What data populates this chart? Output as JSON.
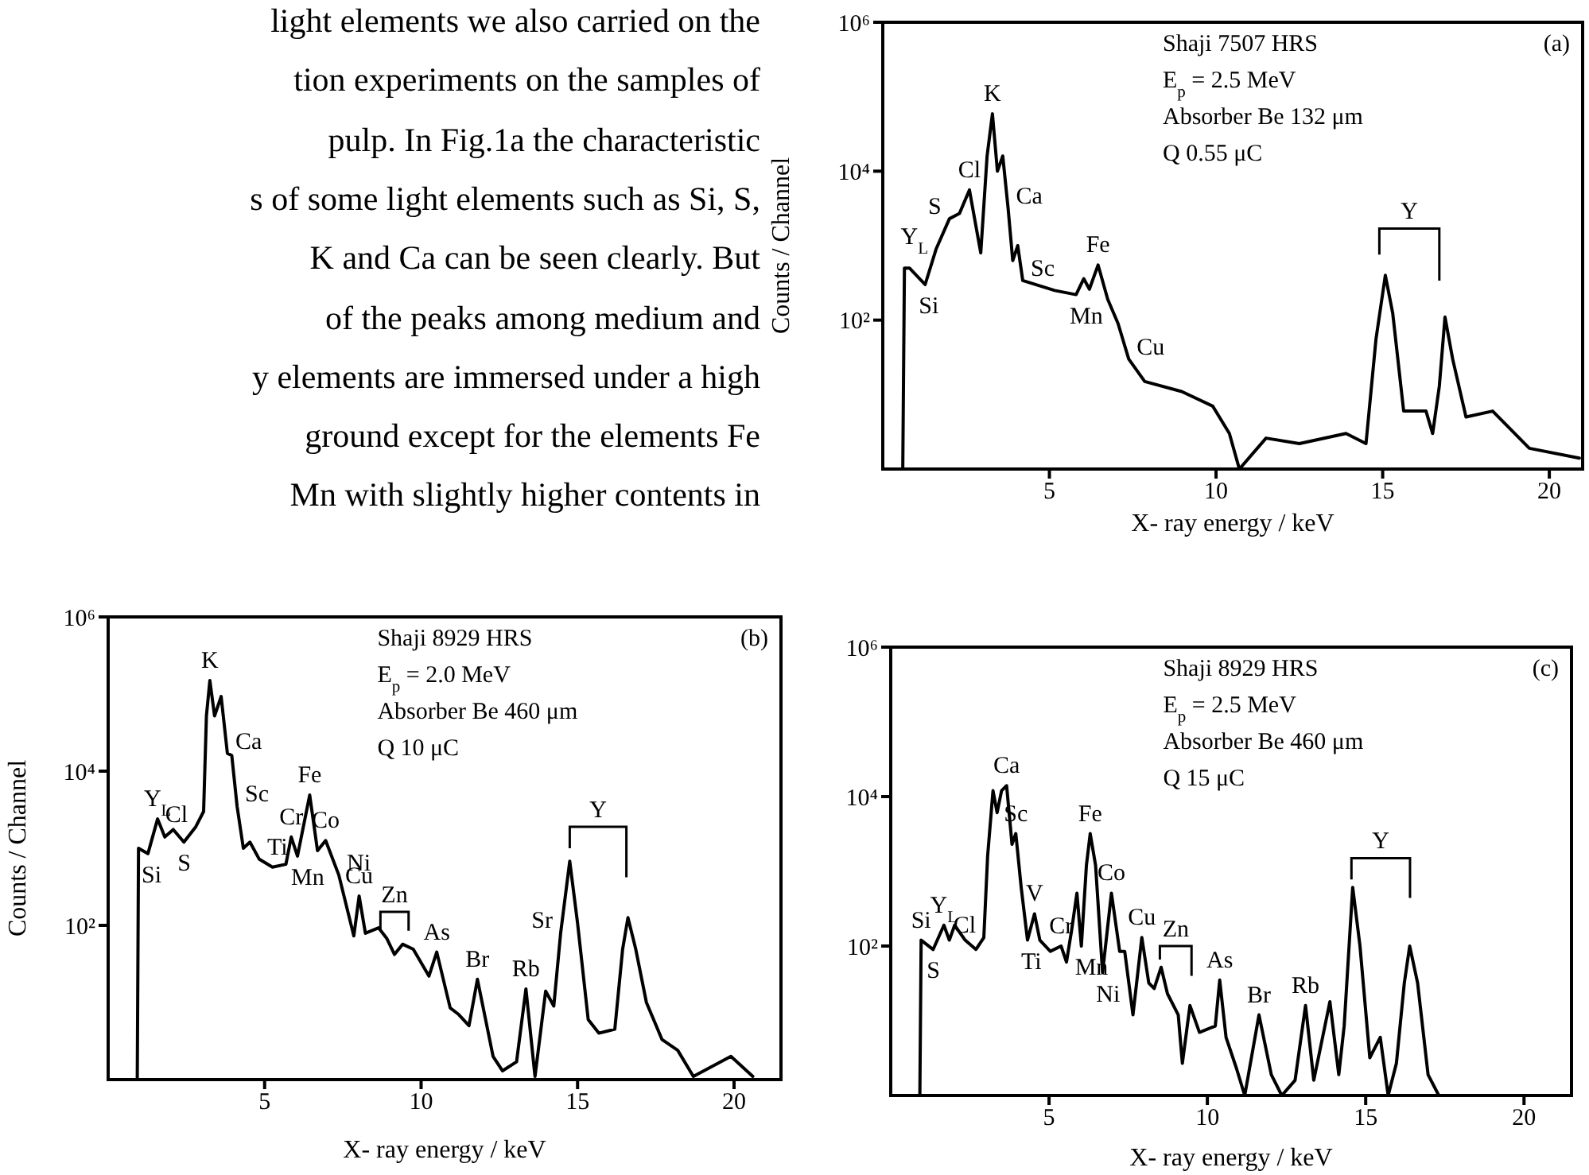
{
  "chart_data": [
    {
      "type": "other",
      "annotations": [
        "light elements we also carried on the",
        "tion experiments on the samples of",
        "pulp. In Fig.1a the characteristic",
        "s of some light elements such as Si, S,",
        "K and Ca can be seen clearly. But",
        "of the peaks among medium and",
        "y elements are immersed under a high",
        "ground except for the elements Fe",
        "Mn with slightly higher contents in"
      ]
    },
    {
      "type": "line",
      "color": "#000000",
      "log": "y",
      "xlabel": "X- ray energy / keV",
      "ylabel": "Counts / Channel",
      "xlim": [
        0,
        21
      ],
      "xticks": [
        5,
        10,
        15,
        20
      ],
      "ylim": [
        1,
        1000000
      ],
      "yticks": [
        {
          "value": 100,
          "label": "10²"
        },
        {
          "value": 10000,
          "label": "10⁴"
        },
        {
          "value": 1000000,
          "label": "10⁶"
        }
      ],
      "x": [
        0.2,
        0.6,
        0.65,
        0.8,
        1.27,
        1.6,
        2.0,
        2.3,
        2.6,
        2.94,
        3.13,
        3.29,
        3.44,
        3.6,
        3.76,
        3.9,
        4.05,
        4.2,
        5.16,
        5.8,
        6.03,
        6.2,
        6.46,
        6.75,
        7.06,
        7.38,
        7.86,
        8.97,
        9.9,
        10.4,
        10.7,
        11.5,
        12.5,
        13.9,
        14.5,
        14.8,
        15.08,
        15.3,
        15.63,
        16.3,
        16.5,
        16.7,
        16.87,
        17.1,
        17.5,
        18.3,
        19.4,
        20.9
      ],
      "values": [
        1,
        1,
        500,
        500,
        300,
        900,
        2300,
        2700,
        5600,
        800,
        16000,
        59000,
        10000,
        16000,
        3200,
        630,
        1000,
        340,
        250,
        220,
        360,
        260,
        550,
        190,
        90,
        30,
        15,
        11,
        7,
        3,
        1,
        2.6,
        2.2,
        3,
        2.2,
        56,
        400,
        125,
        6,
        6,
        3,
        13,
        110,
        30,
        5,
        6,
        1.9,
        1.4
      ],
      "annotations": [
        "Shaji 7507 HRS",
        "E$_{p}$ = 2.5 MeV",
        "Absorber Be 132 μm",
        "Q  0.55 μC",
        "(a)",
        "Y",
        {
          "text": "Si",
          "x": 1.27,
          "y": 300
        },
        {
          "text": "Y$_{L}$",
          "x": 1.6,
          "y": 900
        },
        {
          "text": "S",
          "x": 2.0,
          "y": 2300
        },
        {
          "text": "Cl",
          "x": 2.6,
          "y": 5600
        },
        {
          "text": "K",
          "x": 3.29,
          "y": 59000
        },
        {
          "text": "Ca",
          "x": 3.76,
          "y": 3200
        },
        {
          "text": "Sc",
          "x": 4.2,
          "y": 340
        },
        {
          "text": "Mn",
          "x": 5.8,
          "y": 220
        },
        {
          "text": "Fe",
          "x": 6.46,
          "y": 550
        },
        {
          "text": "Cu",
          "x": 7.38,
          "y": 30
        }
      ]
    },
    {
      "type": "line",
      "color": "#000000",
      "log": "y",
      "xlabel": "X- ray energy / keV",
      "ylabel": "Counts / Channel",
      "xlim": [
        0,
        21.5
      ],
      "xticks": [
        5,
        10,
        15,
        20
      ],
      "ylim": [
        1,
        1000000
      ],
      "yticks": [
        {
          "value": 100,
          "label": "10²"
        },
        {
          "value": 10000,
          "label": "10⁴"
        },
        {
          "value": 1000000,
          "label": "10⁶"
        }
      ],
      "x": [
        0.3,
        0.93,
        0.97,
        1.27,
        1.58,
        1.81,
        2.08,
        2.42,
        2.8,
        3.05,
        3.14,
        3.25,
        3.4,
        3.61,
        3.81,
        3.95,
        4.12,
        4.32,
        4.53,
        4.83,
        5.25,
        5.68,
        5.85,
        6.05,
        6.44,
        6.69,
        6.95,
        7.37,
        7.85,
        8.02,
        8.22,
        8.64,
        8.9,
        9.15,
        9.41,
        9.75,
        10.25,
        10.5,
        10.93,
        11.2,
        11.53,
        11.8,
        12.3,
        12.6,
        13.05,
        13.35,
        13.64,
        13.98,
        14.24,
        14.46,
        14.75,
        15.0,
        15.34,
        15.68,
        16.19,
        16.44,
        16.61,
        16.86,
        17.2,
        17.7,
        18.2,
        18.7,
        19.9,
        20.6
      ],
      "values": [
        1,
        1,
        1000,
        850,
        2400,
        1400,
        1750,
        1200,
        1900,
        3000,
        52000,
        150000,
        52000,
        93000,
        17000,
        16000,
        3500,
        1000,
        1200,
        720,
        570,
        620,
        1400,
        790,
        4900,
        930,
        1260,
        450,
        73,
        240,
        79,
        93,
        68,
        42,
        57,
        49,
        22,
        45,
        8.5,
        7,
        5,
        20,
        2,
        1.3,
        1.7,
        15,
        1.1,
        14,
        9,
        80,
        680,
        107,
        6,
        4,
        4.5,
        49,
        126,
        49,
        10,
        3.3,
        2.4,
        1.1,
        2,
        1.1
      ],
      "annotations": [
        "Shaji 8929 HRS",
        "E$_{p}$ = 2.0 MeV",
        "Absorber Be 460 μm",
        "Q  10 μC",
        "(b)",
        "Y",
        "Zn",
        {
          "text": "Si",
          "x": 1.27,
          "y": 850
        },
        {
          "text": "Y$_{L}$",
          "x": 1.58,
          "y": 2400
        },
        {
          "text": "Cl",
          "x": 2.8,
          "y": 1900
        },
        {
          "text": "S",
          "x": 2.42,
          "y": 1200
        },
        {
          "text": "K",
          "x": 3.25,
          "y": 150000
        },
        {
          "text": "Ca",
          "x": 3.81,
          "y": 17000
        },
        {
          "text": "Sc",
          "x": 4.12,
          "y": 3500
        },
        {
          "text": "Ti",
          "x": 4.83,
          "y": 720
        },
        {
          "text": "Cr",
          "x": 5.85,
          "y": 1400
        },
        {
          "text": "Mn",
          "x": 6.05,
          "y": 790
        },
        {
          "text": "Fe",
          "x": 6.44,
          "y": 4900
        },
        {
          "text": "Co",
          "x": 6.95,
          "y": 1260
        },
        {
          "text": "Ni",
          "x": 7.37,
          "y": 450
        },
        {
          "text": "Cu",
          "x": 8.02,
          "y": 240
        },
        {
          "text": "As",
          "x": 10.5,
          "y": 45
        },
        {
          "text": "Br",
          "x": 11.8,
          "y": 20
        },
        {
          "text": "Rb",
          "x": 13.35,
          "y": 15
        },
        {
          "text": "Sr",
          "x": 14.46,
          "y": 80
        }
      ]
    },
    {
      "type": "line",
      "color": "#000000",
      "log": "y",
      "xlabel": "X- ray energy / keV",
      "xlim": [
        0,
        21.5
      ],
      "xticks": [
        5,
        10,
        15,
        20
      ],
      "ylim": [
        1,
        1000000
      ],
      "yticks": [
        {
          "value": 100,
          "label": "10²"
        },
        {
          "value": 10000,
          "label": "10⁴"
        },
        {
          "value": 1000000,
          "label": "10⁶"
        }
      ],
      "x": [
        0.5,
        0.92,
        0.96,
        1.34,
        1.68,
        1.85,
        2.02,
        2.35,
        2.69,
        2.94,
        3.06,
        3.23,
        3.36,
        3.5,
        3.66,
        3.83,
        3.95,
        4.12,
        4.32,
        4.54,
        4.71,
        5.04,
        5.38,
        5.55,
        5.71,
        5.88,
        6.02,
        6.18,
        6.3,
        6.47,
        6.69,
        6.97,
        7.23,
        7.39,
        7.65,
        7.93,
        8.15,
        8.32,
        8.54,
        8.74,
        9.08,
        9.21,
        9.45,
        9.75,
        10.25,
        10.39,
        10.59,
        10.92,
        11.18,
        11.63,
        12.02,
        12.35,
        12.77,
        13.1,
        13.36,
        13.87,
        14.15,
        14.32,
        14.59,
        14.82,
        15.13,
        15.46,
        15.71,
        15.97,
        16.22,
        16.39,
        16.64,
        16.97,
        17.31,
        17.82,
        18.8,
        19.66,
        21.4
      ],
      "values": [
        1,
        1,
        120,
        90,
        190,
        120,
        190,
        120,
        90,
        130,
        1600,
        12000,
        6100,
        12000,
        14000,
        2300,
        3200,
        610,
        120,
        270,
        120,
        85,
        100,
        61,
        160,
        510,
        100,
        1200,
        3200,
        1200,
        44,
        510,
        85,
        85,
        12,
        130,
        32,
        27,
        52,
        23,
        12,
        2.7,
        16,
        7,
        8.5,
        35,
        6,
        2.3,
        1,
        12,
        1.9,
        1,
        1.6,
        16,
        1.6,
        18,
        1.9,
        8.5,
        610,
        100,
        3.2,
        6,
        1,
        2.7,
        32,
        100,
        32,
        1.9,
        1,
        1,
        1,
        1,
        1
      ],
      "annotations": [
        "Shaji 8929 HRS",
        "E$_{p}$ = 2.5 MeV",
        "Absorber Be 460 μm",
        "Q  15 μC",
        "(c)",
        "Y",
        "Zn",
        {
          "text": "Si",
          "x": 0.96,
          "y": 120
        },
        {
          "text": "Y$_{L}$",
          "x": 1.68,
          "y": 190
        },
        {
          "text": "S",
          "x": 1.34,
          "y": 90
        },
        {
          "text": "Cl",
          "x": 2.94,
          "y": 130
        },
        {
          "text": "Ca",
          "x": 3.66,
          "y": 14000
        },
        {
          "text": "Sc",
          "x": 3.95,
          "y": 3200
        },
        {
          "text": "Ti",
          "x": 4.32,
          "y": 120
        },
        {
          "text": "V",
          "x": 4.54,
          "y": 270
        },
        {
          "text": "Cr",
          "x": 5.38,
          "y": 100
        },
        {
          "text": "Mn",
          "x": 6.02,
          "y": 100
        },
        {
          "text": "Fe",
          "x": 6.3,
          "y": 3200
        },
        {
          "text": "Ni",
          "x": 6.69,
          "y": 44
        },
        {
          "text": "Co",
          "x": 6.97,
          "y": 510
        },
        {
          "text": "Cu",
          "x": 7.93,
          "y": 130
        },
        {
          "text": "As",
          "x": 10.39,
          "y": 35
        },
        {
          "text": "Br",
          "x": 11.63,
          "y": 12
        },
        {
          "text": "Rb",
          "x": 13.1,
          "y": 16
        }
      ]
    }
  ]
}
